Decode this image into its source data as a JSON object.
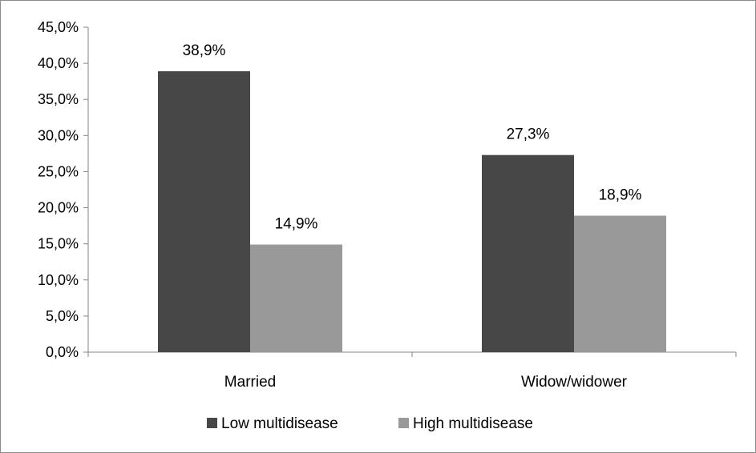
{
  "chart_data": {
    "type": "bar",
    "categories": [
      "Married",
      "Widow/widower"
    ],
    "series": [
      {
        "name": "Low multidisease",
        "values": [
          38.9,
          27.3
        ],
        "labels": [
          "38,9%",
          "27,3%"
        ],
        "color": "#474747"
      },
      {
        "name": "High multidisease",
        "values": [
          14.9,
          18.9
        ],
        "labels": [
          "14,9%",
          "18,9%"
        ],
        "color": "#999999"
      }
    ],
    "ylim": [
      0,
      45
    ],
    "yticks": [
      0,
      5,
      10,
      15,
      20,
      25,
      30,
      35,
      40,
      45
    ],
    "ytick_labels": [
      "0,0%",
      "5,0%",
      "10,0%",
      "15,0%",
      "20,0%",
      "25,0%",
      "30,0%",
      "35,0%",
      "40,0%",
      "45,0%"
    ],
    "title": "",
    "xlabel": "",
    "ylabel": "",
    "grid": false,
    "legend_position": "bottom"
  }
}
